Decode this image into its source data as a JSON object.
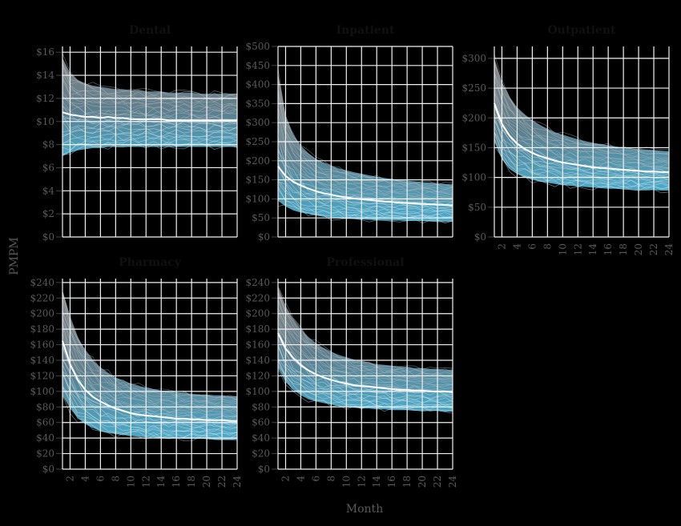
{
  "figure": {
    "ylabel": "PMPM",
    "xlabel": "Month",
    "background": "#000000",
    "band_top_color": "#7a7a7a",
    "band_bottom_color": "#4fa9c6",
    "line_color": "#d9d9d9",
    "mean_color": "#ffffff",
    "grid_color": "#f2f2f2",
    "tick_label_color": "#555555"
  },
  "chart_data": [
    {
      "type": "line",
      "title": "Dental",
      "x_ticks": [
        2,
        4,
        6,
        8,
        10,
        12,
        14,
        16,
        18,
        20,
        22,
        24
      ],
      "show_x_tick_labels": false,
      "ylim": [
        0,
        16.5
      ],
      "y_ticks": [
        0,
        2,
        4,
        6,
        8,
        10,
        12,
        14,
        16
      ],
      "y_tick_labels": [
        "$0",
        "$2",
        "$4",
        "$6",
        "$8",
        "$10",
        "$12",
        "$14",
        "$16"
      ],
      "mean_line": [
        10.8,
        10.6,
        10.5,
        10.4,
        10.4,
        10.3,
        10.4,
        10.3,
        10.3,
        10.2,
        10.2,
        10.2,
        10.2,
        10.2,
        10.1,
        10.1,
        10.1,
        10.1,
        10.1,
        10.1,
        10.1,
        10.1,
        10.1,
        10.1
      ],
      "band_upper": [
        15.5,
        14.2,
        13.6,
        13.3,
        13.1,
        13.0,
        12.9,
        12.8,
        12.8,
        12.7,
        12.7,
        12.6,
        12.6,
        12.6,
        12.5,
        12.5,
        12.5,
        12.5,
        12.4,
        12.4,
        12.4,
        12.4,
        12.4,
        12.4
      ],
      "band_lower": [
        7.0,
        7.3,
        7.5,
        7.6,
        7.7,
        7.7,
        7.8,
        7.8,
        7.8,
        7.8,
        7.8,
        7.8,
        7.8,
        7.8,
        7.8,
        7.8,
        7.8,
        7.8,
        7.8,
        7.8,
        7.8,
        7.8,
        7.8,
        7.8
      ]
    },
    {
      "type": "line",
      "title": "Inpatient",
      "x_ticks": [
        2,
        4,
        6,
        8,
        10,
        12,
        14,
        16,
        18,
        20,
        22,
        24
      ],
      "show_x_tick_labels": false,
      "ylim": [
        0,
        500
      ],
      "y_ticks": [
        0,
        50,
        100,
        150,
        200,
        250,
        300,
        350,
        400,
        450,
        500
      ],
      "y_tick_labels": [
        "$0",
        "$50",
        "$100",
        "$150",
        "$200",
        "$250",
        "$300",
        "$350",
        "$400",
        "$450",
        "$500"
      ],
      "mean_line": [
        185,
        160,
        145,
        135,
        127,
        120,
        115,
        111,
        107,
        104,
        101,
        99,
        97,
        95,
        93,
        92,
        90,
        89,
        88,
        87,
        86,
        85,
        84,
        83
      ],
      "band_upper": [
        430,
        320,
        270,
        240,
        220,
        205,
        195,
        187,
        180,
        175,
        170,
        166,
        162,
        158,
        155,
        152,
        150,
        148,
        146,
        144,
        142,
        140,
        139,
        138
      ],
      "band_lower": [
        95,
        80,
        70,
        64,
        60,
        56,
        53,
        51,
        49,
        48,
        47,
        46,
        45,
        44,
        44,
        43,
        43,
        42,
        42,
        42,
        41,
        41,
        41,
        41
      ]
    },
    {
      "type": "line",
      "title": "Outpatient",
      "x_ticks": [
        2,
        4,
        6,
        8,
        10,
        12,
        14,
        16,
        18,
        20,
        22,
        24
      ],
      "x_tick_labels": [
        "2",
        "4",
        "6",
        "8",
        "10",
        "12",
        "14",
        "16",
        "18",
        "20",
        "22",
        "24"
      ],
      "show_x_tick_labels": true,
      "ylim": [
        0,
        320
      ],
      "y_ticks": [
        0,
        50,
        100,
        150,
        200,
        250,
        300
      ],
      "y_tick_labels": [
        "$0",
        "$50",
        "$100",
        "$150",
        "$200",
        "$250",
        "$300"
      ],
      "mean_line": [
        225,
        190,
        170,
        157,
        148,
        141,
        136,
        132,
        128,
        125,
        123,
        121,
        119,
        117,
        116,
        115,
        114,
        113,
        112,
        111,
        110,
        110,
        109,
        109
      ],
      "band_upper": [
        300,
        260,
        235,
        218,
        206,
        196,
        188,
        182,
        176,
        172,
        168,
        164,
        161,
        158,
        156,
        154,
        152,
        150,
        149,
        148,
        147,
        146,
        145,
        144
      ],
      "band_lower": [
        160,
        130,
        115,
        106,
        100,
        96,
        93,
        91,
        89,
        87,
        86,
        85,
        84,
        83,
        82,
        81,
        81,
        80,
        80,
        79,
        79,
        79,
        78,
        78
      ]
    },
    {
      "type": "line",
      "title": "Pharmacy",
      "x_ticks": [
        2,
        4,
        6,
        8,
        10,
        12,
        14,
        16,
        18,
        20,
        22,
        24
      ],
      "x_tick_labels": [
        "2",
        "4",
        "6",
        "8",
        "10",
        "12",
        "14",
        "16",
        "18",
        "20",
        "22",
        "24"
      ],
      "show_x_tick_labels": true,
      "ylim": [
        0,
        245
      ],
      "y_ticks": [
        0,
        20,
        40,
        60,
        80,
        100,
        120,
        140,
        160,
        180,
        200,
        220,
        240
      ],
      "y_tick_labels": [
        "$0",
        "$20",
        "$40",
        "$60",
        "$80",
        "$100",
        "$120",
        "$140",
        "$160",
        "$180",
        "$200",
        "$220",
        "$240"
      ],
      "mean_line": [
        165,
        135,
        115,
        102,
        93,
        87,
        82,
        78,
        75,
        72,
        70,
        69,
        68,
        67,
        66,
        65,
        65,
        64,
        64,
        63,
        63,
        63,
        62,
        62
      ],
      "band_upper": [
        230,
        195,
        170,
        153,
        140,
        131,
        124,
        118,
        114,
        110,
        107,
        105,
        103,
        101,
        100,
        99,
        98,
        97,
        96,
        96,
        95,
        95,
        94,
        94
      ],
      "band_lower": [
        95,
        78,
        66,
        58,
        53,
        49,
        47,
        45,
        44,
        43,
        42,
        41,
        41,
        40,
        40,
        40,
        39,
        39,
        39,
        39,
        38,
        38,
        38,
        38
      ]
    },
    {
      "type": "line",
      "title": "Professional",
      "x_ticks": [
        2,
        4,
        6,
        8,
        10,
        12,
        14,
        16,
        18,
        20,
        22,
        24
      ],
      "x_tick_labels": [
        "2",
        "4",
        "6",
        "8",
        "10",
        "12",
        "14",
        "16",
        "18",
        "20",
        "22",
        "24"
      ],
      "show_x_tick_labels": true,
      "ylim": [
        0,
        245
      ],
      "y_ticks": [
        0,
        20,
        40,
        60,
        80,
        100,
        120,
        140,
        160,
        180,
        200,
        220,
        240
      ],
      "y_tick_labels": [
        "$0",
        "$20",
        "$40",
        "$60",
        "$80",
        "$100",
        "$120",
        "$140",
        "$160",
        "$180",
        "$200",
        "$220",
        "$240"
      ],
      "mean_line": [
        175,
        155,
        143,
        134,
        127,
        122,
        118,
        115,
        112,
        110,
        108,
        107,
        106,
        105,
        104,
        103,
        102,
        102,
        101,
        101,
        100,
        100,
        100,
        99
      ],
      "band_upper": [
        235,
        210,
        193,
        180,
        170,
        162,
        156,
        151,
        147,
        144,
        141,
        139,
        137,
        135,
        134,
        133,
        132,
        131,
        130,
        130,
        129,
        129,
        128,
        128
      ],
      "band_lower": [
        130,
        112,
        102,
        95,
        90,
        87,
        85,
        83,
        81,
        80,
        79,
        78,
        78,
        77,
        77,
        76,
        76,
        76,
        75,
        75,
        75,
        75,
        74,
        74
      ]
    }
  ]
}
